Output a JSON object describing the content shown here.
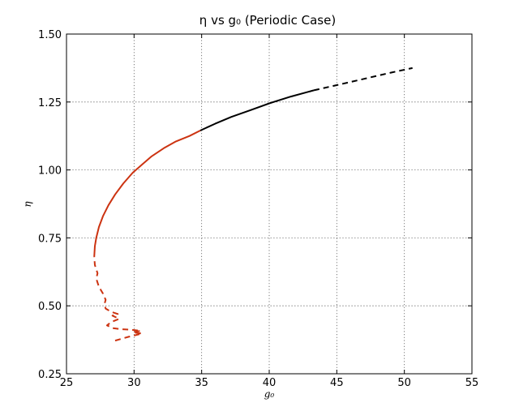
{
  "chart_data": {
    "type": "line",
    "title": "η vs g₀ (Periodic Case)",
    "xlabel": "g₀",
    "ylabel": "η",
    "xlim": [
      25,
      55
    ],
    "ylim": [
      0.25,
      1.5
    ],
    "xticks": [
      "25",
      "30",
      "35",
      "40",
      "45",
      "50",
      "55"
    ],
    "yticks": [
      "0.25",
      "0.50",
      "0.75",
      "1.00",
      "1.25",
      "1.50"
    ],
    "grid": true,
    "colors": {
      "red": "#cc3311",
      "black": "#000000"
    },
    "series": [
      {
        "color": "red",
        "style": "dashed",
        "points": [
          [
            28.6,
            0.372
          ],
          [
            29.6,
            0.386
          ],
          [
            30.6,
            0.398
          ],
          [
            29.9,
            0.402
          ],
          [
            30.5,
            0.408
          ],
          [
            29.8,
            0.412
          ],
          [
            29.0,
            0.414
          ],
          [
            28.4,
            0.418
          ],
          [
            28.0,
            0.428
          ],
          [
            28.3,
            0.44
          ],
          [
            28.9,
            0.452
          ],
          [
            28.4,
            0.464
          ],
          [
            28.8,
            0.47
          ],
          [
            28.3,
            0.478
          ],
          [
            27.9,
            0.49
          ],
          [
            27.8,
            0.505
          ],
          [
            27.9,
            0.522
          ],
          [
            27.7,
            0.545
          ],
          [
            27.4,
            0.57
          ],
          [
            27.2,
            0.6
          ],
          [
            27.3,
            0.62
          ],
          [
            27.1,
            0.65
          ],
          [
            27.05,
            0.68
          ]
        ]
      },
      {
        "color": "red",
        "style": "solid",
        "points": [
          [
            27.05,
            0.68
          ],
          [
            27.1,
            0.72
          ],
          [
            27.2,
            0.75
          ],
          [
            27.4,
            0.79
          ],
          [
            27.7,
            0.83
          ],
          [
            28.1,
            0.87
          ],
          [
            28.6,
            0.91
          ],
          [
            29.2,
            0.95
          ],
          [
            29.9,
            0.99
          ],
          [
            30.6,
            1.02
          ],
          [
            31.3,
            1.05
          ],
          [
            32.2,
            1.08
          ],
          [
            33.1,
            1.105
          ],
          [
            34.1,
            1.125
          ],
          [
            34.9,
            1.145
          ]
        ]
      },
      {
        "color": "black",
        "style": "solid",
        "points": [
          [
            34.9,
            1.145
          ],
          [
            36.0,
            1.17
          ],
          [
            37.2,
            1.195
          ],
          [
            38.6,
            1.22
          ],
          [
            40.0,
            1.245
          ],
          [
            41.6,
            1.27
          ],
          [
            43.3,
            1.293
          ]
        ]
      },
      {
        "color": "black",
        "style": "dashed",
        "points": [
          [
            43.3,
            1.293
          ],
          [
            45.0,
            1.312
          ],
          [
            47.0,
            1.335
          ],
          [
            49.0,
            1.358
          ],
          [
            50.6,
            1.375
          ]
        ]
      }
    ]
  }
}
